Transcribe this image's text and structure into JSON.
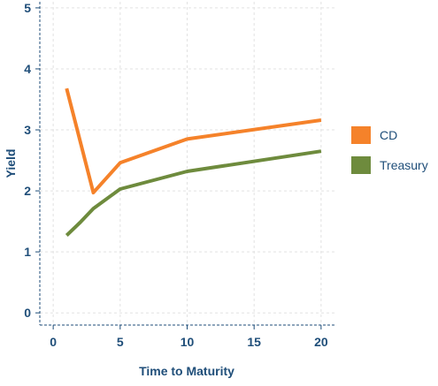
{
  "chart_data": {
    "type": "line",
    "title": "",
    "xlabel": "Time to Maturity",
    "ylabel": "Yield",
    "xlim": [
      -1,
      21
    ],
    "ylim": [
      -0.2,
      5.1
    ],
    "xticks": [
      0,
      5,
      10,
      15,
      20
    ],
    "yticks": [
      0,
      1,
      2,
      3,
      4,
      5
    ],
    "grid": true,
    "legend_position": "right",
    "series": [
      {
        "name": "CD",
        "color": "#f5822a",
        "x": [
          1,
          3,
          5,
          10,
          20
        ],
        "y": [
          3.68,
          1.97,
          2.46,
          2.85,
          3.16
        ]
      },
      {
        "name": "Treasury",
        "color": "#6e8b3d",
        "x": [
          1,
          2,
          3,
          5,
          10,
          20
        ],
        "y": [
          1.27,
          1.48,
          1.71,
          2.03,
          2.32,
          2.65
        ]
      }
    ]
  }
}
